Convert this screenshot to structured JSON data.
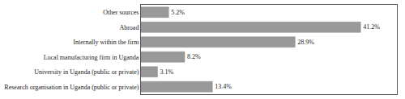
{
  "chart_data": {
    "type": "bar",
    "orientation": "horizontal",
    "categories": [
      "Research organisation in Uganda (public or private)",
      "University in Uganda (public or private)",
      "Local manufacturing firm in Uganda",
      "Internally within the firm",
      "Abroad",
      "Other sources"
    ],
    "values": [
      13.4,
      3.1,
      8.2,
      28.9,
      41.2,
      5.2
    ],
    "value_labels": [
      "13.4%",
      "3.1%",
      "8.2%",
      "28.9%",
      "41.2%",
      "5.2%"
    ],
    "data_labels": true,
    "color": "#999999",
    "xlim": [
      0,
      48
    ],
    "grid": false,
    "tick_labels": "y"
  }
}
